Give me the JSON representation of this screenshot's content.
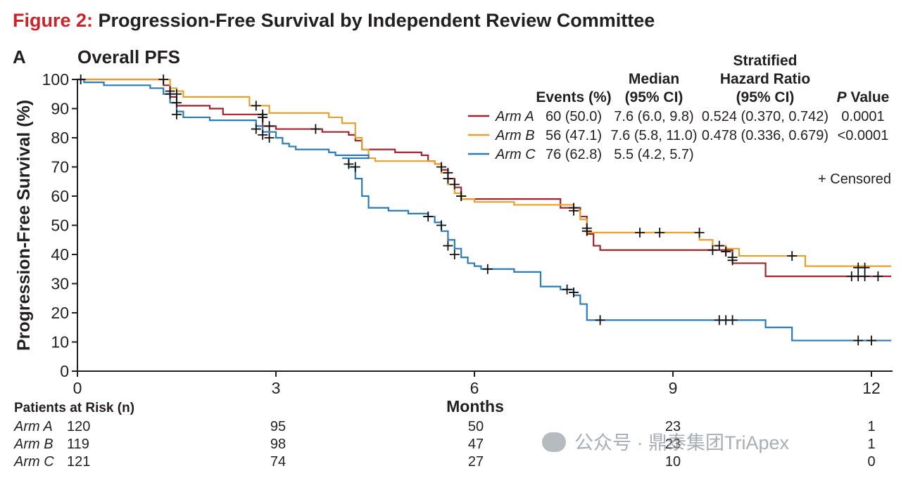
{
  "figure": {
    "label": "Figure 2:",
    "title": "Progression-Free Survival by Independent Review Committee",
    "panel_letter": "A",
    "panel_title": "Overall PFS"
  },
  "chart_data": {
    "type": "line",
    "subtype": "kaplan-meier",
    "xlabel": "Months",
    "ylabel": "Progression-Free Survival (%)",
    "xlim": [
      0,
      12.3
    ],
    "ylim": [
      0,
      100
    ],
    "x_ticks": [
      0,
      3,
      6,
      9,
      12
    ],
    "y_ticks": [
      0,
      10,
      20,
      30,
      40,
      50,
      60,
      70,
      80,
      90,
      100
    ],
    "censored_label": "+ Censored",
    "series": [
      {
        "name": "Arm A",
        "color": "#a2232b",
        "steps": [
          [
            0,
            100
          ],
          [
            1.2,
            100
          ],
          [
            1.3,
            98
          ],
          [
            1.4,
            94
          ],
          [
            1.5,
            91
          ],
          [
            2.0,
            90
          ],
          [
            2.2,
            88
          ],
          [
            2.8,
            88
          ],
          [
            2.8,
            84
          ],
          [
            3.0,
            83
          ],
          [
            3.6,
            83
          ],
          [
            3.7,
            82
          ],
          [
            4.0,
            82
          ],
          [
            4.1,
            81
          ],
          [
            4.2,
            79
          ],
          [
            4.3,
            76
          ],
          [
            4.8,
            75
          ],
          [
            5.2,
            74
          ],
          [
            5.3,
            72
          ],
          [
            5.4,
            71
          ],
          [
            5.5,
            69
          ],
          [
            5.6,
            66
          ],
          [
            5.7,
            63
          ],
          [
            5.8,
            59
          ],
          [
            7.3,
            56
          ],
          [
            7.6,
            53
          ],
          [
            7.7,
            47
          ],
          [
            7.8,
            43
          ],
          [
            7.9,
            41.5
          ],
          [
            9.7,
            41.5
          ],
          [
            9.9,
            37
          ],
          [
            10.4,
            37
          ],
          [
            10.4,
            32.5
          ],
          [
            12.3,
            32.5
          ]
        ],
        "censored": [
          [
            1.3,
            100
          ],
          [
            1.4,
            96
          ],
          [
            1.5,
            92
          ],
          [
            2.8,
            87
          ],
          [
            2.9,
            84
          ],
          [
            3.6,
            83
          ],
          [
            5.6,
            68
          ],
          [
            5.7,
            64
          ],
          [
            5.8,
            60
          ],
          [
            7.5,
            55
          ],
          [
            7.7,
            48
          ],
          [
            9.6,
            41.5
          ],
          [
            9.8,
            41
          ],
          [
            9.9,
            38
          ],
          [
            11.7,
            32.5
          ],
          [
            11.8,
            32.5
          ],
          [
            11.9,
            32.5
          ],
          [
            12.1,
            32.5
          ]
        ]
      },
      {
        "name": "Arm B",
        "color": "#e7a02e",
        "steps": [
          [
            0,
            100
          ],
          [
            1.3,
            100
          ],
          [
            1.4,
            97
          ],
          [
            1.5,
            96
          ],
          [
            1.6,
            94
          ],
          [
            2.4,
            94
          ],
          [
            2.6,
            91
          ],
          [
            2.9,
            88.5
          ],
          [
            3.5,
            88.5
          ],
          [
            3.8,
            87
          ],
          [
            4.0,
            85
          ],
          [
            4.2,
            80
          ],
          [
            4.3,
            76
          ],
          [
            4.4,
            73
          ],
          [
            4.5,
            72
          ],
          [
            5.3,
            72
          ],
          [
            5.4,
            71
          ],
          [
            5.5,
            68
          ],
          [
            5.6,
            64
          ],
          [
            5.7,
            61
          ],
          [
            5.8,
            59
          ],
          [
            6.0,
            58
          ],
          [
            6.4,
            58
          ],
          [
            6.6,
            57
          ],
          [
            7.4,
            57
          ],
          [
            7.5,
            55
          ],
          [
            7.6,
            52
          ],
          [
            7.7,
            47.5
          ],
          [
            9.2,
            47.5
          ],
          [
            9.4,
            45
          ],
          [
            9.6,
            43
          ],
          [
            9.8,
            42
          ],
          [
            10.0,
            39.5
          ],
          [
            10.9,
            39.5
          ],
          [
            11.0,
            36
          ],
          [
            12.3,
            36
          ]
        ],
        "censored": [
          [
            1.5,
            95
          ],
          [
            2.7,
            91
          ],
          [
            2.8,
            88
          ],
          [
            5.5,
            70
          ],
          [
            5.6,
            66
          ],
          [
            5.8,
            60
          ],
          [
            7.5,
            56
          ],
          [
            7.7,
            49
          ],
          [
            8.5,
            47.5
          ],
          [
            8.8,
            47.5
          ],
          [
            9.4,
            47.5
          ],
          [
            9.7,
            43
          ],
          [
            9.8,
            41
          ],
          [
            9.9,
            39
          ],
          [
            10.8,
            39.5
          ],
          [
            11.8,
            35.5
          ],
          [
            11.9,
            35.5
          ]
        ]
      },
      {
        "name": "Arm C",
        "color": "#2b7bb9",
        "steps": [
          [
            0,
            100
          ],
          [
            0.1,
            99
          ],
          [
            0.4,
            98
          ],
          [
            1.0,
            98
          ],
          [
            1.1,
            97
          ],
          [
            1.3,
            95
          ],
          [
            1.4,
            92
          ],
          [
            1.5,
            89
          ],
          [
            1.6,
            87
          ],
          [
            1.9,
            87
          ],
          [
            2.0,
            86
          ],
          [
            2.5,
            86
          ],
          [
            2.7,
            84
          ],
          [
            2.8,
            82
          ],
          [
            3.0,
            80
          ],
          [
            3.1,
            78
          ],
          [
            3.2,
            77
          ],
          [
            3.3,
            76
          ],
          [
            3.7,
            76
          ],
          [
            3.8,
            75
          ],
          [
            3.9,
            74
          ],
          [
            4.3,
            74
          ],
          [
            4.4,
            73
          ],
          [
            4.0,
            73
          ],
          [
            4.1,
            70
          ],
          [
            4.2,
            66
          ],
          [
            4.3,
            60
          ],
          [
            4.4,
            56
          ],
          [
            4.7,
            55
          ],
          [
            5.0,
            54
          ],
          [
            5.2,
            54
          ],
          [
            5.3,
            53
          ],
          [
            5.4,
            51
          ],
          [
            5.5,
            48
          ],
          [
            5.6,
            45
          ],
          [
            5.7,
            42
          ],
          [
            5.8,
            39
          ],
          [
            5.9,
            37
          ],
          [
            6.0,
            36
          ],
          [
            6.1,
            35
          ],
          [
            6.5,
            35
          ],
          [
            6.6,
            34
          ],
          [
            7.0,
            34
          ],
          [
            7.0,
            29
          ],
          [
            7.3,
            28
          ],
          [
            7.5,
            26
          ],
          [
            7.6,
            23
          ],
          [
            7.7,
            17.5
          ],
          [
            10.4,
            17.5
          ],
          [
            10.4,
            15
          ],
          [
            10.8,
            15
          ],
          [
            10.8,
            10.5
          ],
          [
            12.3,
            10.5
          ]
        ],
        "censored": [
          [
            0.05,
            100
          ],
          [
            1.4,
            95
          ],
          [
            1.5,
            88
          ],
          [
            2.7,
            83
          ],
          [
            2.8,
            81
          ],
          [
            2.9,
            80
          ],
          [
            4.1,
            71
          ],
          [
            4.2,
            70
          ],
          [
            5.3,
            53
          ],
          [
            5.5,
            50
          ],
          [
            5.6,
            43
          ],
          [
            5.7,
            40
          ],
          [
            6.2,
            35
          ],
          [
            7.4,
            28
          ],
          [
            7.5,
            27
          ],
          [
            7.9,
            17.5
          ],
          [
            9.7,
            17.5
          ],
          [
            9.8,
            17.5
          ],
          [
            9.9,
            17.5
          ],
          [
            11.8,
            10.5
          ],
          [
            12.0,
            10.5
          ]
        ]
      }
    ]
  },
  "stats_table": {
    "headers": {
      "events": "Events (%)",
      "median_line1": "Median",
      "median_line2": "(95% CI)",
      "hr_line1": "Stratified",
      "hr_line2": "Hazard Ratio",
      "hr_line3": "(95% CI)",
      "p_italic": "P",
      "p_rest": " Value"
    },
    "rows": [
      {
        "arm": "Arm A",
        "events": "60 (50.0)",
        "median": "7.6 (6.0, 9.8)",
        "hr": "0.524 (0.370, 0.742)",
        "p": "0.0001"
      },
      {
        "arm": "Arm B",
        "events": "56 (47.1)",
        "median": "7.6 (5.8, 11.0)",
        "hr": "0.478 (0.336, 0.679)",
        "p": "<0.0001"
      },
      {
        "arm": "Arm C",
        "events": "76 (62.8)",
        "median": "5.5 (4.2, 5.7)",
        "hr": "",
        "p": ""
      }
    ]
  },
  "risk_table": {
    "header": "Patients at Risk (n)",
    "rows": [
      {
        "arm": "Arm A",
        "total": "120",
        "values": [
          "95",
          "50",
          "23",
          "1"
        ]
      },
      {
        "arm": "Arm B",
        "total": "119",
        "values": [
          "98",
          "47",
          "23",
          "1"
        ]
      },
      {
        "arm": "Arm C",
        "total": "121",
        "values": [
          "74",
          "27",
          "10",
          "0"
        ]
      }
    ]
  },
  "watermark": {
    "text": "公众号 · 鼎泰集团TriApex"
  }
}
